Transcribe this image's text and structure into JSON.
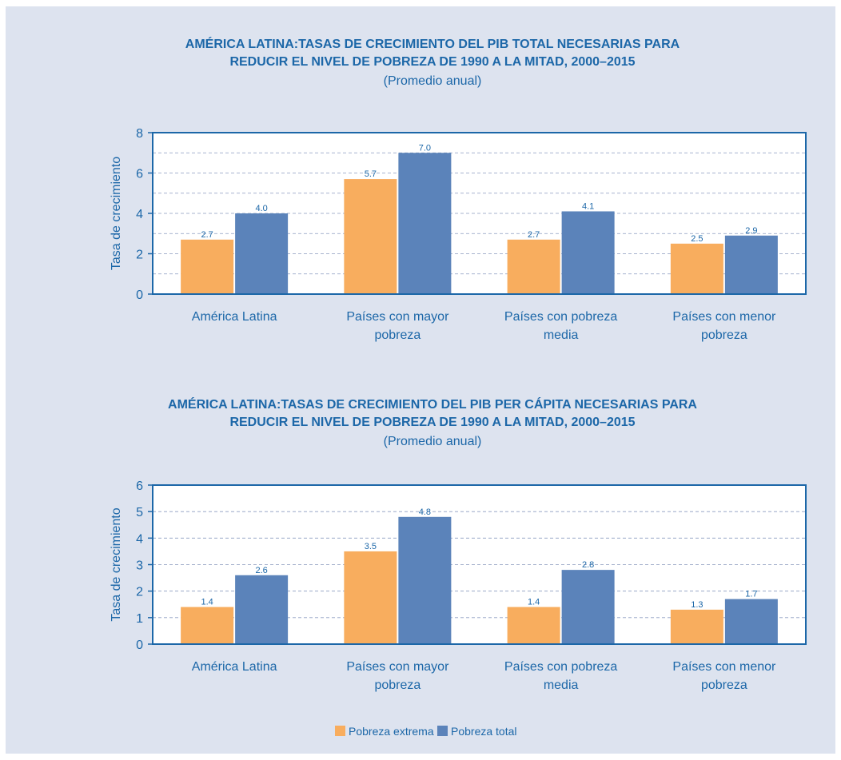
{
  "colors": {
    "pobreza_extrema": "#f8ad5e",
    "pobreza_total": "#5b83ba",
    "axis": "#1c67a8",
    "text": "#1c67a8",
    "panel_bg": "#dde3ef",
    "plot_bg": "#ffffff"
  },
  "legend": {
    "items": [
      "Pobreza extrema",
      "Pobreza total"
    ],
    "placement": "bottom-center"
  },
  "chart_data": [
    {
      "type": "bar",
      "title_line1": "AMÉRICA LATINA:TASAS DE CRECIMIENTO DEL PIB TOTAL NECESARIAS PARA",
      "title_line2": "REDUCIR EL NIVEL DE POBREZA DE 1990 A LA MITAD, 2000–2015",
      "subtitle": "(Promedio anual)",
      "ylabel": "Tasa de crecimiento",
      "ylim": [
        0,
        8
      ],
      "yticks": [
        "0",
        "2",
        "4",
        "6",
        "8"
      ],
      "grid": "dashed, every 1 unit",
      "categories": [
        [
          "América Latina"
        ],
        [
          "Países con mayor",
          "pobreza"
        ],
        [
          "Países con pobreza",
          "media"
        ],
        [
          "Países con menor",
          "pobreza"
        ]
      ],
      "series": [
        {
          "name": "Pobreza extrema",
          "values": [
            2.7,
            5.7,
            2.7,
            2.5
          ],
          "labels": [
            "2.7",
            "5.7",
            "2.7",
            "2.5"
          ]
        },
        {
          "name": "Pobreza total",
          "values": [
            4.0,
            7.0,
            4.1,
            2.9
          ],
          "labels": [
            "4.0",
            "7.0",
            "4.1",
            "2.9"
          ]
        }
      ]
    },
    {
      "type": "bar",
      "title_line1": "AMÉRICA LATINA:TASAS DE CRECIMIENTO DEL PIB PER CÁPITA NECESARIAS PARA",
      "title_line2": "REDUCIR EL NIVEL DE POBREZA DE 1990 A LA MITAD, 2000–2015",
      "subtitle": "(Promedio anual)",
      "ylabel": "Tasa de crecimiento",
      "ylim": [
        0,
        6
      ],
      "yticks": [
        "0",
        "1",
        "2",
        "3",
        "4",
        "5",
        "6"
      ],
      "grid": "dashed, every 1 unit",
      "categories": [
        [
          "América Latina"
        ],
        [
          "Países con mayor",
          "pobreza"
        ],
        [
          "Países con pobreza",
          "media"
        ],
        [
          "Países con menor",
          "pobreza"
        ]
      ],
      "series": [
        {
          "name": "Pobreza extrema",
          "values": [
            1.4,
            3.5,
            1.4,
            1.3
          ],
          "labels": [
            "1.4",
            "3.5",
            "1.4",
            "1.3"
          ]
        },
        {
          "name": "Pobreza total",
          "values": [
            2.6,
            4.8,
            2.8,
            1.7
          ],
          "labels": [
            "2.6",
            "4.8",
            "2.8",
            "1.7"
          ]
        }
      ]
    }
  ]
}
